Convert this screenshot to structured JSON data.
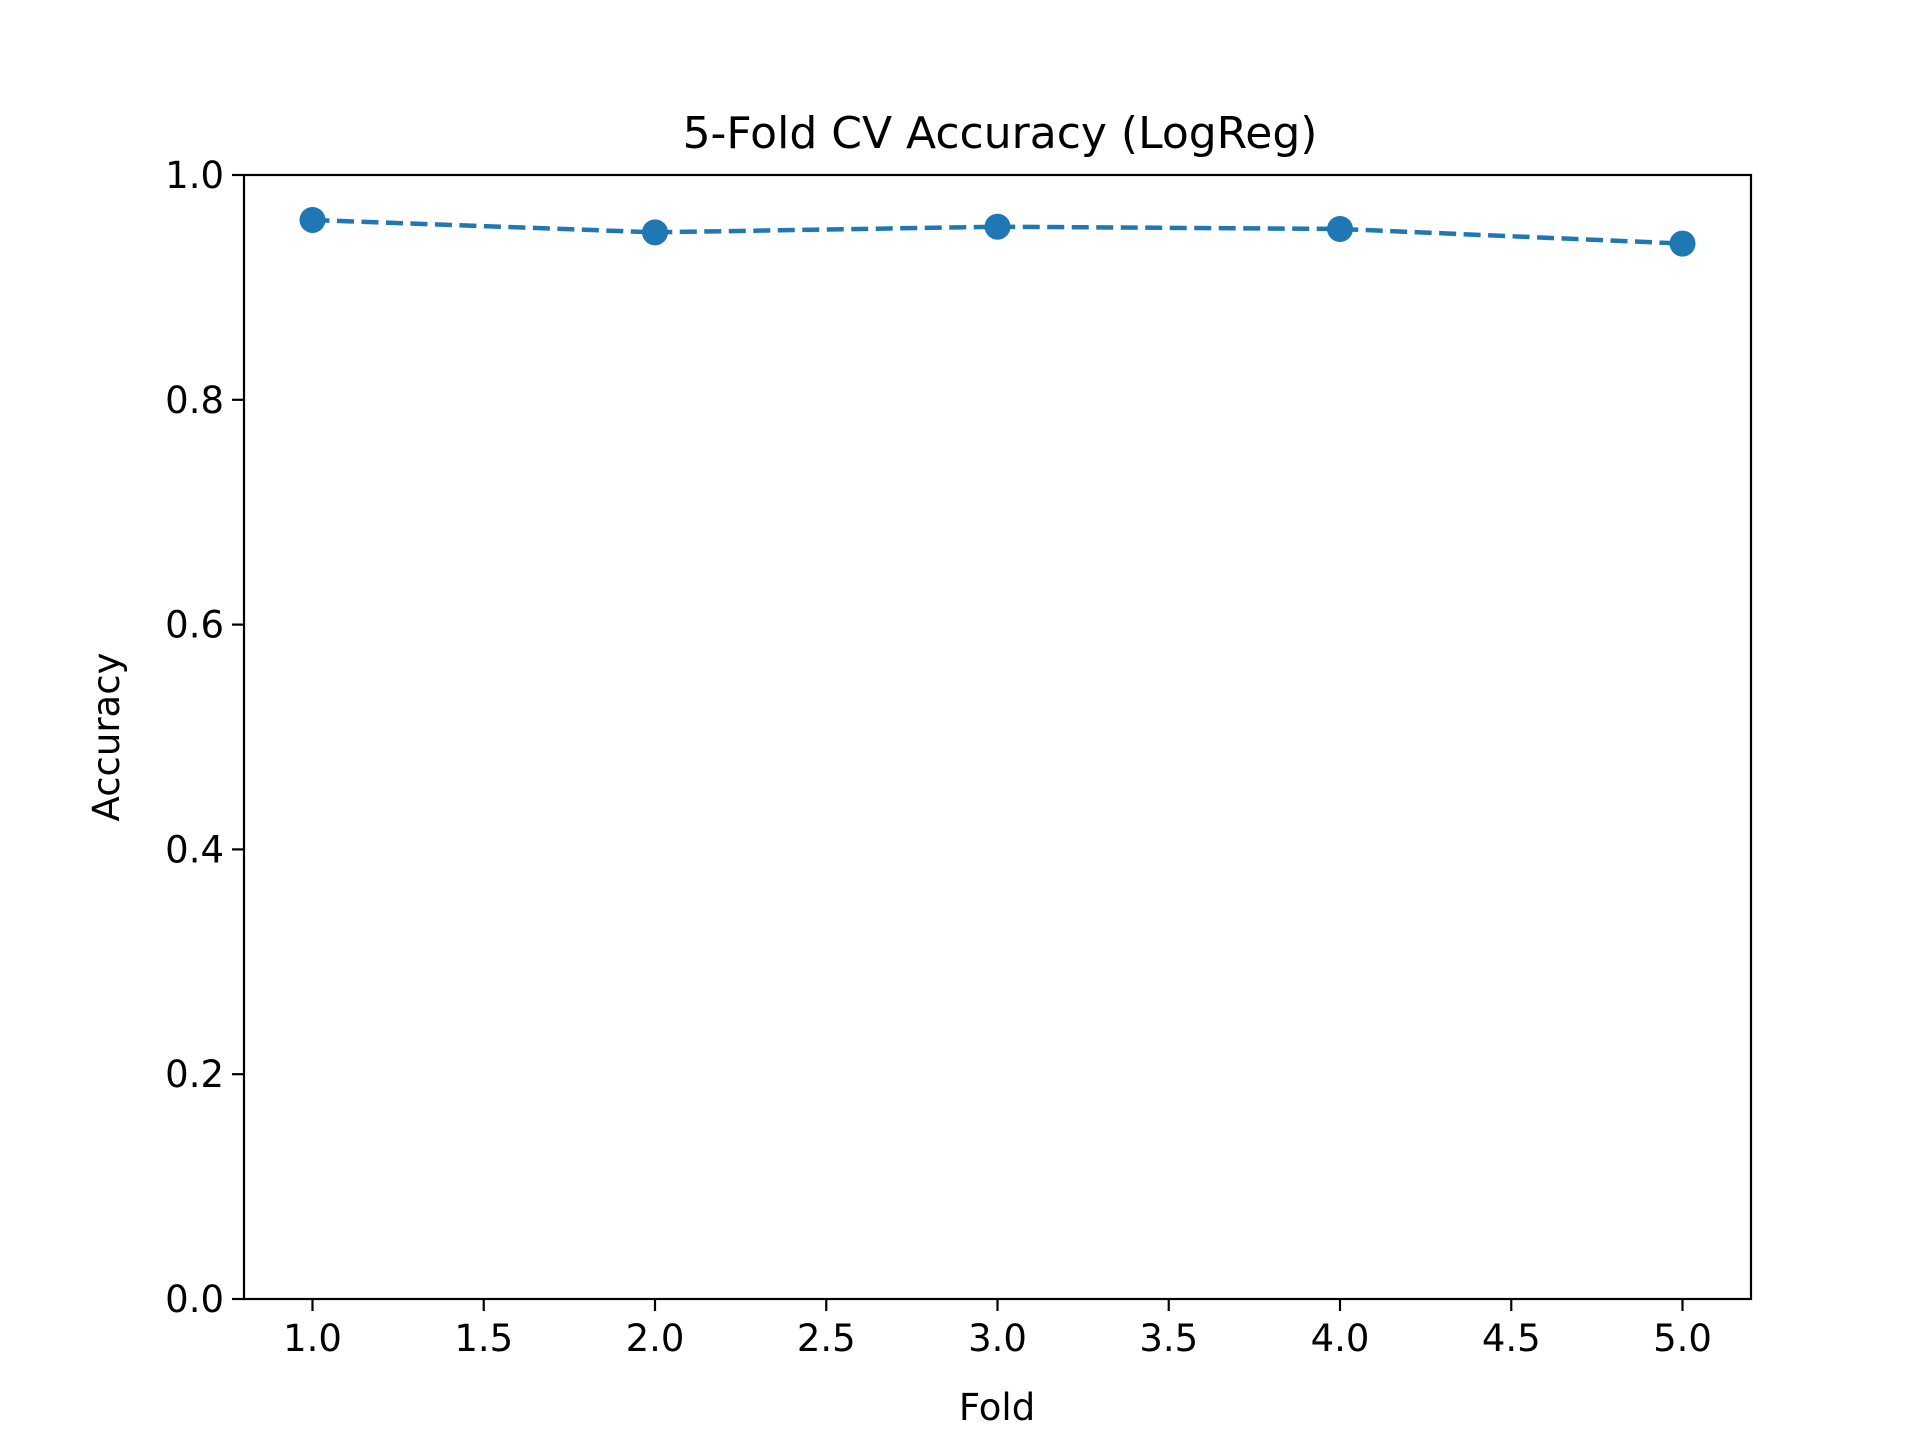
{
  "chart_data": {
    "type": "line",
    "title": "5-Fold CV Accuracy (LogReg)",
    "xlabel": "Fold",
    "ylabel": "Accuracy",
    "xlim": [
      0.8,
      5.2
    ],
    "ylim": [
      0.0,
      1.0
    ],
    "x_ticks": [
      "1.0",
      "1.5",
      "2.0",
      "2.5",
      "3.0",
      "3.5",
      "4.0",
      "4.5",
      "5.0"
    ],
    "y_ticks": [
      "0.0",
      "0.2",
      "0.4",
      "0.6",
      "0.8",
      "1.0"
    ],
    "grid": false,
    "legend": "none",
    "line_style": "dashed",
    "marker": "circle",
    "series": [
      {
        "color": "#1f77b4",
        "x": [
          1,
          2,
          3,
          4,
          5
        ],
        "values": [
          0.96,
          0.949,
          0.954,
          0.952,
          0.939
        ]
      }
    ]
  }
}
